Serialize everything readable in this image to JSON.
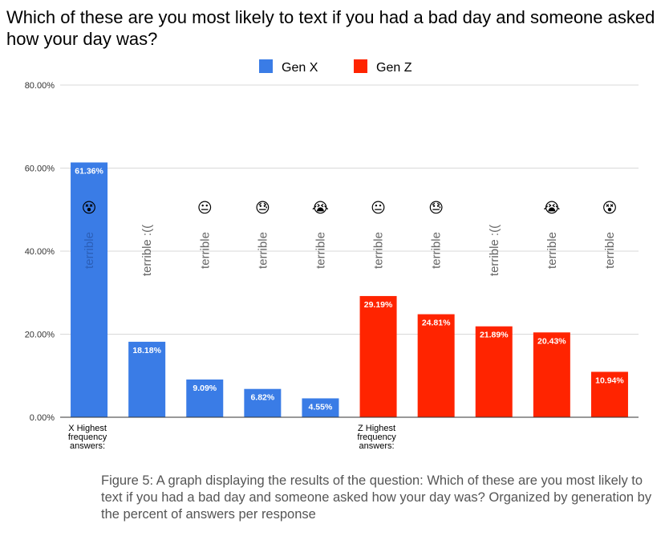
{
  "chart_data": {
    "type": "bar",
    "title": "Which of these are you most likely to text if you had a bad day and someone asked how your day was?",
    "ylim": [
      0,
      80
    ],
    "yticks": [
      "0.00%",
      "20.00%",
      "40.00%",
      "60.00%",
      "80.00%"
    ],
    "ytick_values": [
      0,
      20,
      40,
      60,
      80
    ],
    "grid": true,
    "legend_position": "top-center",
    "categories": [
      "X Highest frequency answers:",
      "",
      "",
      "",
      "",
      "Z Highest frequency answers:",
      "",
      "",
      "",
      ""
    ],
    "series": [
      {
        "name": "Gen X",
        "color": "#3a7ce6",
        "values": [
          61.36,
          18.18,
          9.09,
          6.82,
          4.55,
          null,
          null,
          null,
          null,
          null
        ]
      },
      {
        "name": "Gen Z",
        "color": "#ff2400",
        "values": [
          null,
          null,
          null,
          null,
          null,
          29.19,
          24.81,
          21.89,
          20.43,
          10.94
        ]
      }
    ],
    "value_labels": [
      "61.36%",
      "18.18%",
      "9.09%",
      "6.82%",
      "4.55%",
      "29.19%",
      "24.81%",
      "21.89%",
      "20.43%",
      "10.94%"
    ],
    "annotation_words": [
      "terrible",
      "terrible :((",
      "terrible",
      "terrible",
      "terrible",
      "terrible",
      "terrible",
      "terrible :((",
      "terrible",
      "terrible"
    ],
    "annotation_emoji": [
      "😵",
      "",
      "😐",
      "😓",
      "😭",
      "😐",
      "😓",
      "",
      "😭",
      "😵"
    ]
  },
  "caption": "Figure 5: A graph displaying the results of the question: Which of these are you most likely to text if you had a bad day and someone asked how your day was? Organized by generation by the percent of answers per response"
}
